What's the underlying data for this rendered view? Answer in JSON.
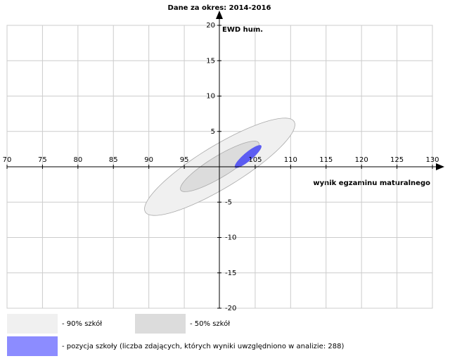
{
  "chart_data": {
    "type": "ellipse",
    "title": "Dane za okres: 2014-2016",
    "x_label": "wynik egzaminu maturalnego",
    "y_label": "EWD hum.",
    "xlim": [
      70,
      130
    ],
    "ylim": [
      -20,
      20
    ],
    "xticks": [
      70,
      75,
      80,
      85,
      90,
      95,
      105,
      110,
      115,
      120,
      125,
      130
    ],
    "yticks": [
      20,
      15,
      10,
      5,
      -5,
      -10,
      -15,
      -20
    ],
    "grid": true,
    "series": [
      {
        "name": "- 90% szkół",
        "color": "#f0f0f0",
        "cx": 100,
        "cy": 0,
        "major": [
          10.5,
          6.4
        ],
        "minor": [
          1.55,
          -2.55
        ]
      },
      {
        "name": "- 50% szkół",
        "color": "#dcdcdc",
        "cx": 100,
        "cy": 0.05,
        "major": [
          5.5,
          3.35
        ],
        "minor": [
          0.77,
          -1.27
        ]
      },
      {
        "name": "- pozycja szkoły (liczba zdających, których wyniki uwzględniono w analizie: 288)",
        "color": "#5c5cf2",
        "cx": 104,
        "cy": 1.45,
        "major": [
          1.85,
          1.55
        ],
        "minor": [
          0.39,
          -0.46
        ]
      }
    ]
  }
}
